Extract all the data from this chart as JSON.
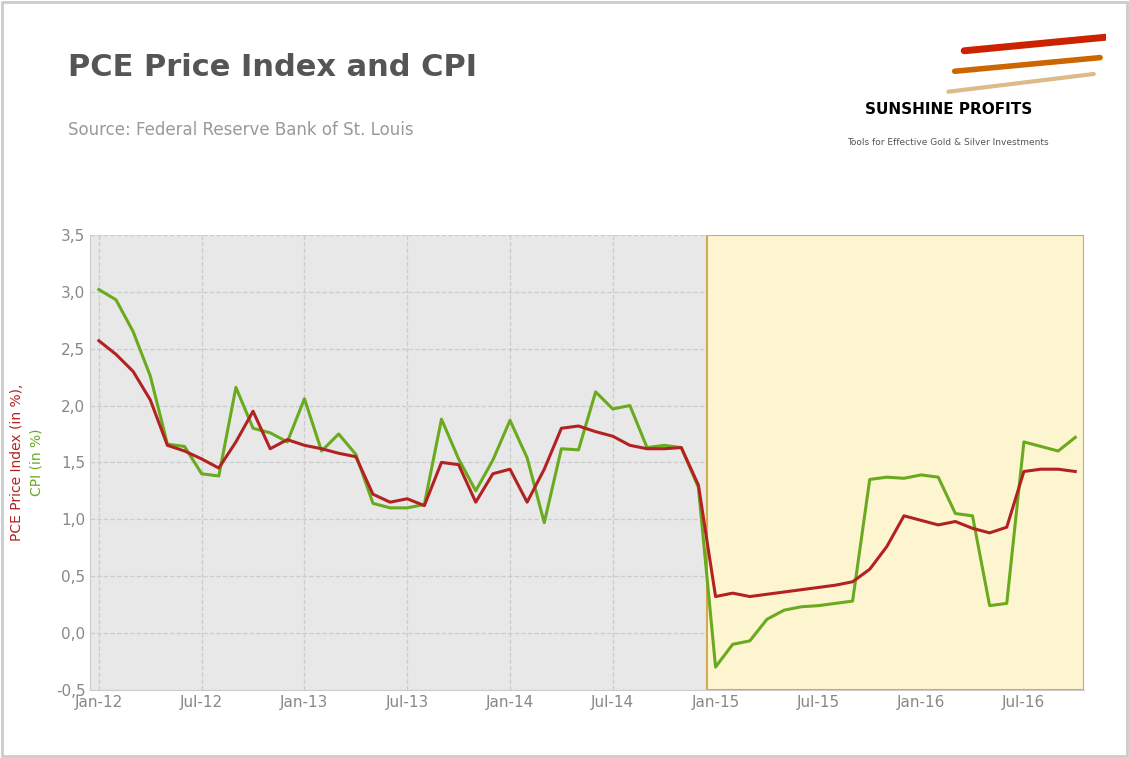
{
  "title": "PCE Price Index and CPI",
  "source": "Source: Federal Reserve Bank of St. Louis",
  "plot_bg_color": "#e8e8e8",
  "highlight_bg_color": "#fdf5d0",
  "highlight_border_color": "#d4aa50",
  "highlight_start_idx": 36,
  "pce_color": "#b22222",
  "cpi_color": "#6aaa1e",
  "grid_color": "#cccccc",
  "tick_color": "#888888",
  "title_color": "#555555",
  "source_color": "#999999",
  "ylim": [
    -0.5,
    3.5
  ],
  "yticks": [
    -0.5,
    0.0,
    0.5,
    1.0,
    1.5,
    2.0,
    2.5,
    3.0,
    3.5
  ],
  "ytick_labels": [
    "-0,5",
    "0,0",
    "0,5",
    "1,0",
    "1,5",
    "2,0",
    "2,5",
    "3,0",
    "3,5"
  ],
  "xtick_positions": [
    0,
    6,
    12,
    18,
    24,
    30,
    36,
    42,
    48,
    54
  ],
  "xtick_labels": [
    "Jan-12",
    "Jul-12",
    "Jan-13",
    "Jul-13",
    "Jan-14",
    "Jul-14",
    "Jan-15",
    "Jul-15",
    "Jan-16",
    "Jul-16"
  ],
  "pce_values": [
    2.57,
    2.45,
    2.3,
    2.05,
    1.65,
    1.6,
    1.53,
    1.45,
    1.68,
    1.95,
    1.62,
    1.7,
    1.65,
    1.62,
    1.58,
    1.55,
    1.22,
    1.15,
    1.18,
    1.12,
    1.5,
    1.48,
    1.15,
    1.4,
    1.44,
    1.15,
    1.44,
    1.8,
    1.82,
    1.77,
    1.73,
    1.65,
    1.62,
    1.62,
    1.63,
    1.3,
    0.32,
    0.35,
    0.32,
    0.34,
    0.36,
    0.38,
    0.4,
    0.42,
    0.45,
    0.56,
    0.76,
    1.03,
    0.99,
    0.95,
    0.98,
    0.92,
    0.88,
    0.93,
    1.42,
    1.44,
    1.44,
    1.42
  ],
  "cpi_values": [
    3.02,
    2.93,
    2.65,
    2.26,
    1.66,
    1.64,
    1.4,
    1.38,
    2.16,
    1.8,
    1.76,
    1.68,
    2.06,
    1.6,
    1.75,
    1.57,
    1.14,
    1.1,
    1.1,
    1.13,
    1.88,
    1.53,
    1.25,
    1.52,
    1.87,
    1.54,
    0.97,
    1.62,
    1.61,
    2.12,
    1.97,
    2.0,
    1.63,
    1.65,
    1.63,
    1.28,
    -0.3,
    -0.1,
    -0.07,
    0.12,
    0.2,
    0.23,
    0.24,
    0.26,
    0.28,
    1.35,
    1.37,
    1.36,
    1.39,
    1.37,
    1.05,
    1.03,
    0.24,
    0.26,
    1.68,
    1.64,
    1.6,
    1.72
  ]
}
